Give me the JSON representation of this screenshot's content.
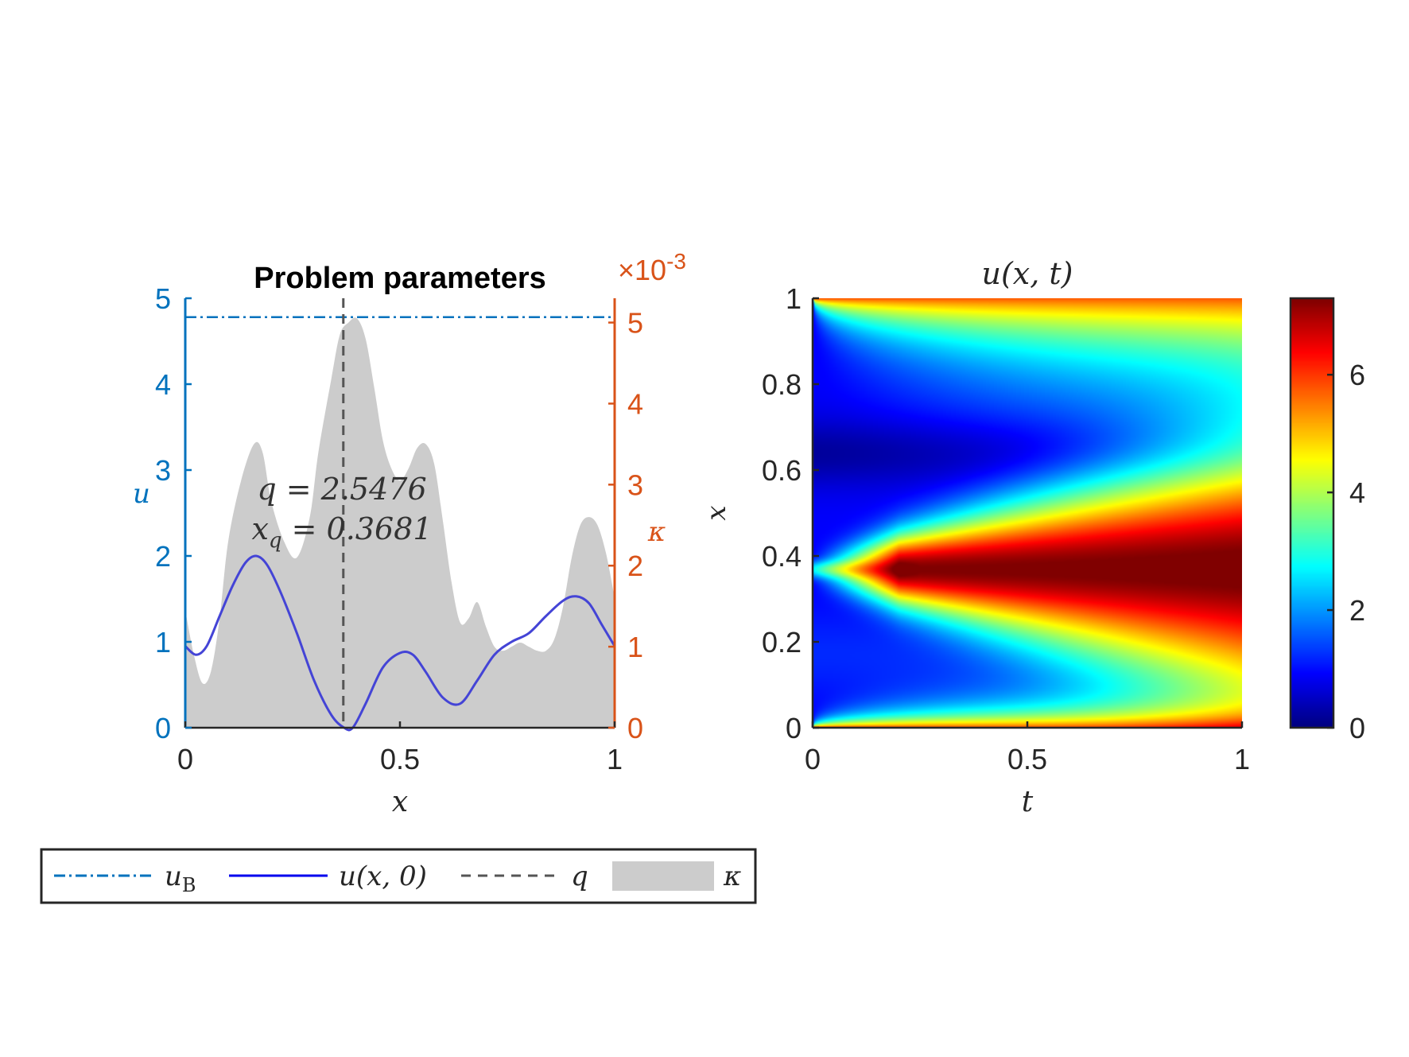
{
  "colors": {
    "left_axis": "#0072BD",
    "right_axis": "#D95319",
    "u_curve": "#4444D6",
    "uB_line": "#0072BD",
    "q_line": "#555555",
    "kappa_fill": "#CCCCCC",
    "axis_black": "#262626"
  },
  "chart_data": [
    {
      "type": "area",
      "title": "Problem parameters",
      "xlabel": "x",
      "ylabel_left": "u",
      "ylabel_right": "κ",
      "right_axis_multiplier": "×10",
      "right_axis_exponent": "-3",
      "xlim": [
        0,
        1
      ],
      "ylim_left": [
        0,
        5
      ],
      "ylim_right": [
        0,
        5.3
      ],
      "xticks": [
        "0",
        "0.5",
        "1"
      ],
      "yticks_left": [
        "0",
        "1",
        "2",
        "3",
        "4",
        "5"
      ],
      "yticks_right": [
        "0",
        "1",
        "2",
        "3",
        "4",
        "5"
      ],
      "grid": false,
      "annotation_line1": "q = 2.5476",
      "annotation_line2": "x",
      "annotation_line2_sub": "q",
      "annotation_line2_rest": " = 0.3681",
      "uB": 4.78,
      "q_x": 0.3681,
      "series": [
        {
          "name": "u(x,0)",
          "axis": "left",
          "x": [
            0,
            0.025,
            0.05,
            0.08,
            0.11,
            0.14,
            0.165,
            0.19,
            0.22,
            0.26,
            0.3,
            0.34,
            0.37,
            0.39,
            0.42,
            0.46,
            0.5,
            0.53,
            0.56,
            0.6,
            0.64,
            0.68,
            0.72,
            0.76,
            0.8,
            0.84,
            0.88,
            0.91,
            0.94,
            0.97,
            1.0
          ],
          "values": [
            0.95,
            0.85,
            0.95,
            1.3,
            1.65,
            1.92,
            2.0,
            1.9,
            1.6,
            1.1,
            0.55,
            0.15,
            0.0,
            0.0,
            0.28,
            0.7,
            0.87,
            0.85,
            0.65,
            0.35,
            0.28,
            0.55,
            0.85,
            1.0,
            1.1,
            1.3,
            1.48,
            1.53,
            1.45,
            1.2,
            0.95
          ]
        },
        {
          "name": "κ",
          "axis": "right",
          "x": [
            0,
            0.02,
            0.04,
            0.06,
            0.08,
            0.1,
            0.13,
            0.16,
            0.18,
            0.2,
            0.23,
            0.26,
            0.29,
            0.31,
            0.34,
            0.36,
            0.38,
            0.4,
            0.42,
            0.44,
            0.46,
            0.48,
            0.5,
            0.52,
            0.54,
            0.56,
            0.58,
            0.6,
            0.62,
            0.64,
            0.66,
            0.68,
            0.7,
            0.72,
            0.74,
            0.76,
            0.78,
            0.8,
            0.82,
            0.84,
            0.86,
            0.88,
            0.9,
            0.92,
            0.94,
            0.96,
            0.98,
            1.0
          ],
          "values": [
            1.45,
            0.9,
            0.55,
            0.7,
            1.35,
            2.3,
            3.05,
            3.5,
            3.4,
            2.8,
            2.3,
            2.1,
            2.6,
            3.4,
            4.3,
            4.85,
            5.0,
            5.05,
            4.8,
            4.2,
            3.55,
            3.2,
            3.05,
            3.2,
            3.45,
            3.5,
            3.25,
            2.55,
            1.8,
            1.3,
            1.35,
            1.55,
            1.25,
            1.0,
            0.95,
            1.0,
            1.05,
            1.0,
            0.95,
            0.95,
            1.1,
            1.5,
            2.1,
            2.5,
            2.6,
            2.5,
            2.15,
            1.6
          ]
        }
      ]
    },
    {
      "type": "heatmap",
      "title": "u(x, t)",
      "xlabel": "t",
      "ylabel": "x",
      "xlim": [
        0,
        1
      ],
      "ylim": [
        0,
        1
      ],
      "xticks": [
        "0",
        "0.5",
        "1"
      ],
      "yticks": [
        "0",
        "0.2",
        "0.4",
        "0.6",
        "0.8",
        "1"
      ],
      "colormap": "jet",
      "clim": [
        0,
        7.3
      ],
      "colorbar_ticks": [
        "0",
        "2",
        "4",
        "6"
      ],
      "grid": false
    }
  ],
  "legend": {
    "placement": "bottom-left",
    "items": [
      {
        "label": "u",
        "sub": "B",
        "style": "dash-dot"
      },
      {
        "label": "u(x, 0)",
        "sub": "",
        "style": "solid"
      },
      {
        "label": "q",
        "sub": "",
        "style": "dashed"
      },
      {
        "label": "κ",
        "sub": "",
        "style": "fill"
      }
    ]
  }
}
